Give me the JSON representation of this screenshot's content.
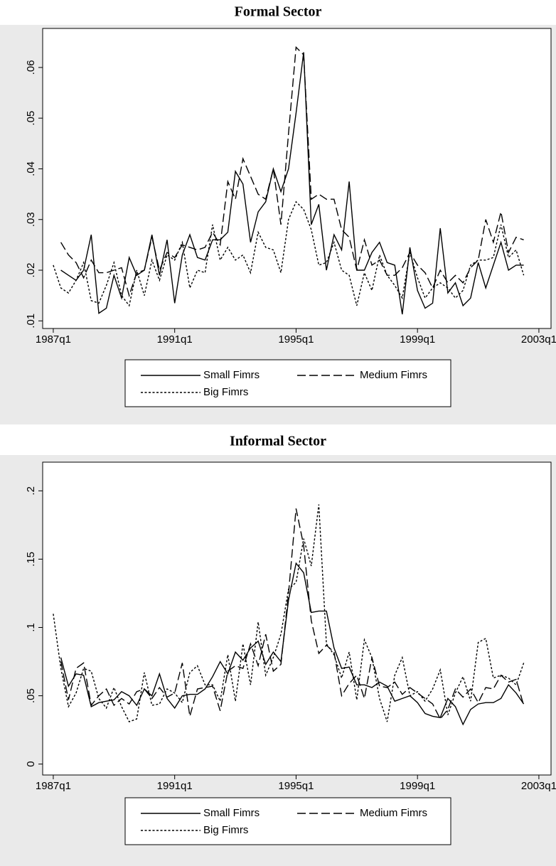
{
  "chart_data": [
    {
      "type": "line",
      "title": "Formal Sector",
      "x": [
        1987,
        1987.25,
        1987.5,
        1987.75,
        1988,
        1988.25,
        1988.5,
        1988.75,
        1989,
        1989.25,
        1989.5,
        1989.75,
        1990,
        1990.25,
        1990.5,
        1990.75,
        1991,
        1991.25,
        1991.5,
        1991.75,
        1992,
        1992.25,
        1992.5,
        1992.75,
        1993,
        1993.25,
        1993.5,
        1993.75,
        1994,
        1994.25,
        1994.5,
        1994.75,
        1995,
        1995.25,
        1995.5,
        1995.75,
        1996,
        1996.25,
        1996.5,
        1996.75,
        1997,
        1997.25,
        1997.5,
        1997.75,
        1998,
        1998.25,
        1998.5,
        1998.75,
        1999,
        1999.25,
        1999.5,
        1999.75,
        2000,
        2000.25,
        2000.5,
        2000.75,
        2001,
        2001.25,
        2001.5,
        2001.75,
        2002,
        2002.25,
        2002.5
      ],
      "series": [
        {
          "name": "Small Fimrs",
          "color": "#000000",
          "line_style": "solid",
          "values": [
            null,
            0.02,
            0.019,
            0.018,
            0.02,
            0.027,
            0.0115,
            0.0125,
            0.019,
            0.0145,
            0.0225,
            0.019,
            0.02,
            0.027,
            0.019,
            0.026,
            0.0135,
            0.023,
            0.027,
            0.0225,
            0.022,
            0.026,
            0.026,
            0.0275,
            0.0395,
            0.037,
            0.0255,
            0.0315,
            0.0335,
            0.04,
            0.0355,
            0.04,
            0.051,
            0.063,
            0.029,
            0.033,
            0.02,
            0.027,
            0.024,
            0.0375,
            0.02,
            0.02,
            0.0235,
            0.0255,
            0.0215,
            0.021,
            0.0113,
            0.0245,
            0.016,
            0.0125,
            0.0135,
            0.0283,
            0.0155,
            0.0175,
            0.013,
            0.0145,
            0.0215,
            0.0165,
            0.021,
            0.0255,
            0.02,
            0.021,
            0.021
          ]
        },
        {
          "name": "Medium Fimrs",
          "color": "#000000",
          "line_style": "dashed",
          "values": [
            null,
            0.0255,
            0.023,
            0.0215,
            0.0185,
            0.022,
            0.0195,
            0.0195,
            0.02,
            0.0205,
            0.015,
            0.0195,
            0.02,
            0.0265,
            0.02,
            0.0235,
            0.0225,
            0.025,
            0.0245,
            0.024,
            0.0245,
            0.0275,
            0.025,
            0.0375,
            0.034,
            0.042,
            0.0385,
            0.035,
            0.034,
            0.04,
            0.029,
            0.047,
            0.064,
            0.0625,
            0.034,
            0.035,
            0.034,
            0.034,
            0.028,
            0.0265,
            0.02,
            0.026,
            0.021,
            0.022,
            0.019,
            0.019,
            0.0205,
            0.0235,
            0.021,
            0.0195,
            0.0165,
            0.02,
            0.0175,
            0.019,
            0.0175,
            0.0205,
            0.022,
            0.03,
            0.0255,
            0.0315,
            0.0235,
            0.0265,
            0.026
          ]
        },
        {
          "name": "Big Fimrs",
          "color": "#000000",
          "line_style": "dotted",
          "values": [
            0.021,
            0.0165,
            0.0155,
            0.018,
            0.0215,
            0.014,
            0.0135,
            0.017,
            0.0215,
            0.015,
            0.013,
            0.02,
            0.015,
            0.022,
            0.018,
            0.023,
            0.022,
            0.0255,
            0.0165,
            0.02,
            0.0195,
            0.029,
            0.022,
            0.0245,
            0.022,
            0.023,
            0.0195,
            0.0275,
            0.0245,
            0.024,
            0.0195,
            0.03,
            0.0335,
            0.032,
            0.028,
            0.021,
            0.0215,
            0.0255,
            0.02,
            0.019,
            0.013,
            0.0195,
            0.016,
            0.023,
            0.019,
            0.017,
            0.0145,
            0.0235,
            0.0185,
            0.0145,
            0.0165,
            0.0175,
            0.0165,
            0.0145,
            0.016,
            0.021,
            0.022,
            0.022,
            0.0225,
            0.029,
            0.0225,
            0.024,
            0.019
          ]
        }
      ],
      "xlim": [
        1986.65,
        2003.4
      ],
      "xticks": [
        {
          "value": 1987,
          "label": "1987q1"
        },
        {
          "value": 1991,
          "label": "1991q1"
        },
        {
          "value": 1995,
          "label": "1995q1"
        },
        {
          "value": 1999,
          "label": "1999q1"
        },
        {
          "value": 2003,
          "label": "2003q1"
        }
      ],
      "ylim": [
        0.0085,
        0.0677
      ],
      "yticks": [
        {
          "value": 0.01,
          "label": ".01"
        },
        {
          "value": 0.02,
          "label": ".02"
        },
        {
          "value": 0.03,
          "label": ".03"
        },
        {
          "value": 0.04,
          "label": ".04"
        },
        {
          "value": 0.05,
          "label": ".05"
        },
        {
          "value": 0.06,
          "label": ".06"
        }
      ]
    },
    {
      "type": "line",
      "title": "Informal Sector",
      "x": [
        1987,
        1987.25,
        1987.5,
        1987.75,
        1988,
        1988.25,
        1988.5,
        1988.75,
        1989,
        1989.25,
        1989.5,
        1989.75,
        1990,
        1990.25,
        1990.5,
        1990.75,
        1991,
        1991.25,
        1991.5,
        1991.75,
        1992,
        1992.25,
        1992.5,
        1992.75,
        1993,
        1993.25,
        1993.5,
        1993.75,
        1994,
        1994.25,
        1994.5,
        1994.75,
        1995,
        1995.25,
        1995.5,
        1995.75,
        1996,
        1996.25,
        1996.5,
        1996.75,
        1997,
        1997.25,
        1997.5,
        1997.75,
        1998,
        1998.25,
        1998.5,
        1998.75,
        1999,
        1999.25,
        1999.5,
        1999.75,
        2000,
        2000.25,
        2000.5,
        2000.75,
        2001,
        2001.25,
        2001.5,
        2001.75,
        2002,
        2002.25,
        2002.5
      ],
      "series": [
        {
          "name": "Small Fimrs",
          "color": "#000000",
          "line_style": "solid",
          "values": [
            null,
            0.078,
            0.057,
            0.066,
            0.065,
            0.042,
            0.045,
            0.046,
            0.047,
            0.053,
            0.05,
            0.043,
            0.055,
            0.05,
            0.066,
            0.048,
            0.041,
            0.05,
            0.051,
            0.051,
            0.055,
            0.064,
            0.075,
            0.066,
            0.082,
            0.076,
            0.085,
            0.09,
            0.073,
            0.082,
            0.075,
            0.12,
            0.147,
            0.14,
            0.111,
            0.112,
            0.112,
            0.085,
            0.07,
            0.071,
            0.058,
            0.058,
            0.056,
            0.06,
            0.057,
            0.046,
            0.048,
            0.05,
            0.045,
            0.037,
            0.035,
            0.034,
            0.048,
            0.042,
            0.029,
            0.04,
            0.044,
            0.045,
            0.045,
            0.048,
            0.058,
            0.052,
            0.044
          ]
        },
        {
          "name": "Medium Fimrs",
          "color": "#000000",
          "line_style": "dashed",
          "values": [
            null,
            0.075,
            0.047,
            0.07,
            0.074,
            0.043,
            0.05,
            0.055,
            0.043,
            0.048,
            0.044,
            0.053,
            0.055,
            0.048,
            0.056,
            0.049,
            0.052,
            0.074,
            0.035,
            0.055,
            0.056,
            0.057,
            0.039,
            0.068,
            0.072,
            0.07,
            0.088,
            0.072,
            0.095,
            0.068,
            0.073,
            0.125,
            0.187,
            0.16,
            0.105,
            0.081,
            0.087,
            0.082,
            0.05,
            0.059,
            0.065,
            0.048,
            0.078,
            0.057,
            0.056,
            0.06,
            0.051,
            0.056,
            0.052,
            0.048,
            0.044,
            0.033,
            0.04,
            0.055,
            0.049,
            0.055,
            0.045,
            0.056,
            0.055,
            0.065,
            0.06,
            0.062,
            0.043
          ]
        },
        {
          "name": "Big Fimrs",
          "color": "#000000",
          "line_style": "dotted",
          "values": [
            0.11,
            0.07,
            0.042,
            0.052,
            0.07,
            0.068,
            0.048,
            0.041,
            0.056,
            0.042,
            0.031,
            0.033,
            0.067,
            0.043,
            0.044,
            0.055,
            0.052,
            0.045,
            0.067,
            0.072,
            0.058,
            0.058,
            0.046,
            0.08,
            0.046,
            0.088,
            0.058,
            0.104,
            0.065,
            0.078,
            0.095,
            0.128,
            0.133,
            0.165,
            0.145,
            0.19,
            0.088,
            0.08,
            0.063,
            0.082,
            0.047,
            0.091,
            0.078,
            0.048,
            0.031,
            0.065,
            0.078,
            0.05,
            0.053,
            0.046,
            0.055,
            0.069,
            0.036,
            0.052,
            0.064,
            0.046,
            0.089,
            0.092,
            0.063,
            0.065,
            0.063,
            0.058,
            0.074
          ]
        }
      ],
      "xlim": [
        1986.65,
        2003.4
      ],
      "xticks": [
        {
          "value": 1987,
          "label": "1987q1"
        },
        {
          "value": 1991,
          "label": "1991q1"
        },
        {
          "value": 1995,
          "label": "1995q1"
        },
        {
          "value": 1999,
          "label": "1999q1"
        },
        {
          "value": 2003,
          "label": "2003q1"
        }
      ],
      "ylim": [
        -0.008,
        0.221
      ],
      "yticks": [
        0,
        {
          "value": 0.05,
          "label": ".05"
        },
        {
          "value": 0.1,
          "label": ".1"
        },
        {
          "value": 0.15,
          "label": ".15"
        },
        {
          "value": 0.2,
          "label": ".2"
        }
      ]
    }
  ]
}
